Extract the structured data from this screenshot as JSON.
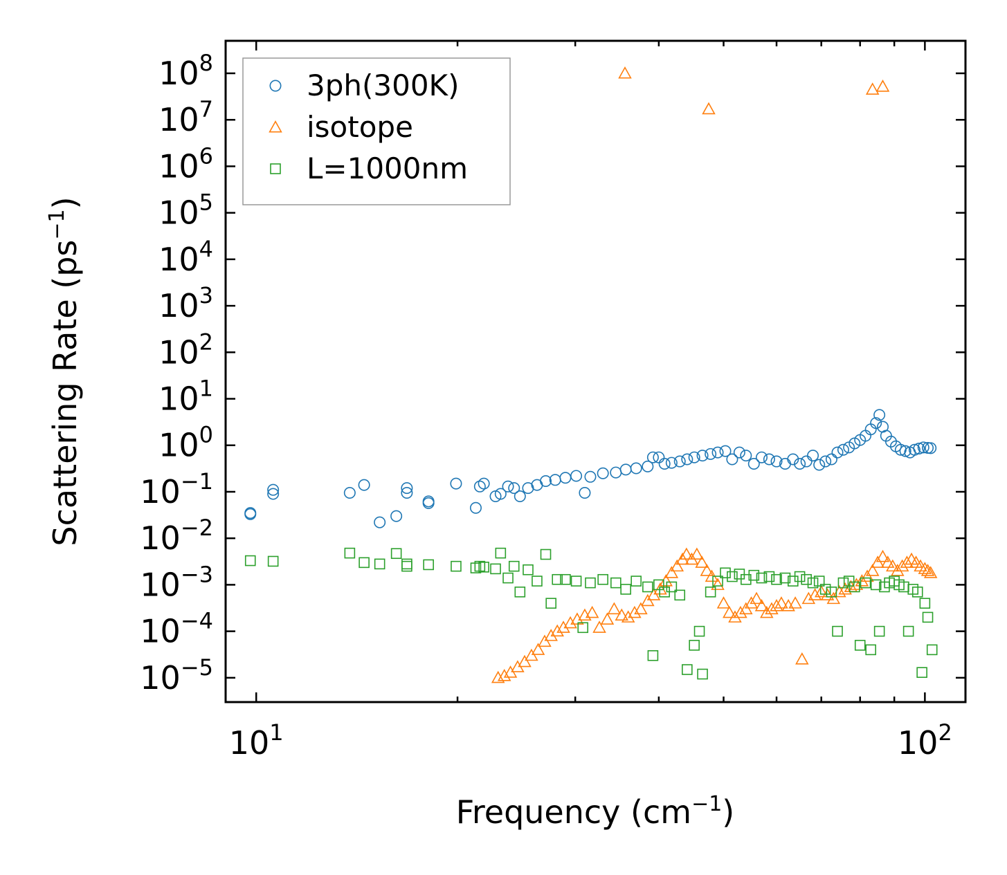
{
  "chart_data": {
    "type": "scatter",
    "title": "",
    "xlabel": "Frequency (cm⁻¹)",
    "xlabel_base": "Frequency (cm",
    "xlabel_sup": "−1",
    "xlabel_end": ")",
    "ylabel": "Scattering Rate (ps⁻¹)",
    "ylabel_base": "Scattering Rate (ps",
    "ylabel_sup": "−1",
    "ylabel_end": ")",
    "xscale": "log",
    "yscale": "log",
    "xlim": [
      9.0,
      115.0
    ],
    "ylim": [
      3e-06,
      500000000.0
    ],
    "x_ticks": [
      {
        "base": "10",
        "exp": "1"
      },
      {
        "base": "10",
        "exp": "2"
      }
    ],
    "y_ticks": [
      {
        "base": "10",
        "exp": "−5"
      },
      {
        "base": "10",
        "exp": "−4"
      },
      {
        "base": "10",
        "exp": "−3"
      },
      {
        "base": "10",
        "exp": "−2"
      },
      {
        "base": "10",
        "exp": "−1"
      },
      {
        "base": "10",
        "exp": "0"
      },
      {
        "base": "10",
        "exp": "1"
      },
      {
        "base": "10",
        "exp": "2"
      },
      {
        "base": "10",
        "exp": "3"
      },
      {
        "base": "10",
        "exp": "4"
      },
      {
        "base": "10",
        "exp": "5"
      },
      {
        "base": "10",
        "exp": "6"
      },
      {
        "base": "10",
        "exp": "7"
      },
      {
        "base": "10",
        "exp": "8"
      }
    ],
    "legend_position": "top-left",
    "series": [
      {
        "name": "3ph(300K)",
        "marker": "circle",
        "color": "#1f77b4",
        "points": [
          [
            9.8,
            0.035
          ],
          [
            9.8,
            0.033
          ],
          [
            10.6,
            0.11
          ],
          [
            10.6,
            0.09
          ],
          [
            13.8,
            0.095
          ],
          [
            14.5,
            0.14
          ],
          [
            15.3,
            0.022
          ],
          [
            16.2,
            0.03
          ],
          [
            16.8,
            0.12
          ],
          [
            16.8,
            0.095
          ],
          [
            18.1,
            0.062
          ],
          [
            18.1,
            0.057
          ],
          [
            19.9,
            0.15
          ],
          [
            21.3,
            0.045
          ],
          [
            21.6,
            0.13
          ],
          [
            21.9,
            0.15
          ],
          [
            22.8,
            0.08
          ],
          [
            23.2,
            0.09
          ],
          [
            23.8,
            0.13
          ],
          [
            24.3,
            0.12
          ],
          [
            24.8,
            0.08
          ],
          [
            25.5,
            0.12
          ],
          [
            26.3,
            0.14
          ],
          [
            27.1,
            0.17
          ],
          [
            28.0,
            0.18
          ],
          [
            29.0,
            0.2
          ],
          [
            30.1,
            0.22
          ],
          [
            31.0,
            0.095
          ],
          [
            31.6,
            0.21
          ],
          [
            33.0,
            0.25
          ],
          [
            34.5,
            0.26
          ],
          [
            35.7,
            0.3
          ],
          [
            37.0,
            0.32
          ],
          [
            38.5,
            0.35
          ],
          [
            39.2,
            0.55
          ],
          [
            40.0,
            0.55
          ],
          [
            40.8,
            0.4
          ],
          [
            41.8,
            0.42
          ],
          [
            43.0,
            0.45
          ],
          [
            44.1,
            0.5
          ],
          [
            45.2,
            0.55
          ],
          [
            46.5,
            0.6
          ],
          [
            47.8,
            0.65
          ],
          [
            49.0,
            0.7
          ],
          [
            50.3,
            0.75
          ],
          [
            51.5,
            0.5
          ],
          [
            52.8,
            0.7
          ],
          [
            54.0,
            0.6
          ],
          [
            55.5,
            0.4
          ],
          [
            57.0,
            0.55
          ],
          [
            58.5,
            0.5
          ],
          [
            60.0,
            0.45
          ],
          [
            61.8,
            0.4
          ],
          [
            63.5,
            0.5
          ],
          [
            65.0,
            0.4
          ],
          [
            66.5,
            0.45
          ],
          [
            68.0,
            0.6
          ],
          [
            69.5,
            0.38
          ],
          [
            71.0,
            0.45
          ],
          [
            72.5,
            0.5
          ],
          [
            74.0,
            0.7
          ],
          [
            75.5,
            0.8
          ],
          [
            77.0,
            0.9
          ],
          [
            78.5,
            1.1
          ],
          [
            80.0,
            1.3
          ],
          [
            81.5,
            1.6
          ],
          [
            83.0,
            2.2
          ],
          [
            84.5,
            3.0
          ],
          [
            85.5,
            4.5
          ],
          [
            86.5,
            2.5
          ],
          [
            87.5,
            1.6
          ],
          [
            89.0,
            1.2
          ],
          [
            90.5,
            0.95
          ],
          [
            92.0,
            0.8
          ],
          [
            93.5,
            0.75
          ],
          [
            95.0,
            0.7
          ],
          [
            96.5,
            0.8
          ],
          [
            98.0,
            0.85
          ],
          [
            99.5,
            0.9
          ],
          [
            101.0,
            0.88
          ],
          [
            102.0,
            0.87
          ]
        ]
      },
      {
        "name": "isotope",
        "marker": "triangle",
        "color": "#ff7f0e",
        "points": [
          [
            35.6,
            100000000.0
          ],
          [
            47.5,
            17000000.0
          ],
          [
            83.5,
            45000000.0
          ],
          [
            86.5,
            52000000.0
          ],
          [
            23.0,
            1e-05
          ],
          [
            23.5,
            1.1e-05
          ],
          [
            24.0,
            1.3e-05
          ],
          [
            24.6,
            1.7e-05
          ],
          [
            25.2,
            2.2e-05
          ],
          [
            25.8,
            3e-05
          ],
          [
            26.4,
            4e-05
          ],
          [
            27.0,
            6e-05
          ],
          [
            27.6,
            8e-05
          ],
          [
            28.2,
            0.0001
          ],
          [
            28.8,
            0.00012
          ],
          [
            29.5,
            0.00015
          ],
          [
            30.2,
            0.00018
          ],
          [
            31.0,
            0.00022
          ],
          [
            31.8,
            0.00025
          ],
          [
            32.6,
            0.00012
          ],
          [
            33.5,
            0.00018
          ],
          [
            34.3,
            0.0003
          ],
          [
            35.2,
            0.00022
          ],
          [
            36.0,
            0.0002
          ],
          [
            36.8,
            0.00025
          ],
          [
            37.6,
            0.0003
          ],
          [
            38.5,
            0.00045
          ],
          [
            39.3,
            0.0006
          ],
          [
            40.2,
            0.0008
          ],
          [
            41.0,
            0.0012
          ],
          [
            41.8,
            0.0018
          ],
          [
            42.6,
            0.0025
          ],
          [
            43.4,
            0.0035
          ],
          [
            44.0,
            0.0045
          ],
          [
            44.8,
            0.0035
          ],
          [
            45.6,
            0.0045
          ],
          [
            46.4,
            0.003
          ],
          [
            47.2,
            0.002
          ],
          [
            48.0,
            0.0015
          ],
          [
            49.0,
            0.001
          ],
          [
            50.0,
            0.0004
          ],
          [
            51.0,
            0.00025
          ],
          [
            52.0,
            0.0002
          ],
          [
            53.0,
            0.00025
          ],
          [
            54.0,
            0.0003
          ],
          [
            55.0,
            0.0004
          ],
          [
            56.0,
            0.0005
          ],
          [
            57.0,
            0.00035
          ],
          [
            58.0,
            0.00025
          ],
          [
            59.0,
            0.0003
          ],
          [
            60.0,
            0.00035
          ],
          [
            61.0,
            0.0004
          ],
          [
            62.5,
            0.00035
          ],
          [
            64.0,
            0.0004
          ],
          [
            65.5,
            2.5e-05
          ],
          [
            67.0,
            0.0005
          ],
          [
            68.5,
            0.0006
          ],
          [
            70.0,
            0.0007
          ],
          [
            71.5,
            0.0006
          ],
          [
            73.0,
            0.0005
          ],
          [
            74.5,
            0.0007
          ],
          [
            76.0,
            0.0008
          ],
          [
            77.5,
            0.0009
          ],
          [
            79.0,
            0.001
          ],
          [
            80.5,
            0.0012
          ],
          [
            82.0,
            0.0015
          ],
          [
            83.5,
            0.002
          ],
          [
            85.0,
            0.003
          ],
          [
            86.5,
            0.004
          ],
          [
            88.0,
            0.003
          ],
          [
            89.5,
            0.0025
          ],
          [
            91.0,
            0.002
          ],
          [
            92.5,
            0.0025
          ],
          [
            94.0,
            0.003
          ],
          [
            95.5,
            0.0035
          ],
          [
            97.0,
            0.003
          ],
          [
            98.5,
            0.0025
          ],
          [
            100.0,
            0.0022
          ],
          [
            101.0,
            0.002
          ],
          [
            102.0,
            0.0018
          ]
        ]
      },
      {
        "name": "L=1000nm",
        "marker": "square",
        "color": "#2ca02c",
        "points": [
          [
            9.8,
            0.0033
          ],
          [
            10.6,
            0.0032
          ],
          [
            13.8,
            0.0048
          ],
          [
            14.5,
            0.003
          ],
          [
            15.3,
            0.0028
          ],
          [
            16.2,
            0.0047
          ],
          [
            16.8,
            0.0028
          ],
          [
            16.8,
            0.0025
          ],
          [
            18.1,
            0.0027
          ],
          [
            19.9,
            0.0025
          ],
          [
            21.3,
            0.0023
          ],
          [
            21.6,
            0.0025
          ],
          [
            21.9,
            0.0024
          ],
          [
            22.8,
            0.0022
          ],
          [
            23.2,
            0.0048
          ],
          [
            23.8,
            0.0014
          ],
          [
            24.3,
            0.0025
          ],
          [
            24.8,
            0.0007
          ],
          [
            25.5,
            0.0021
          ],
          [
            26.3,
            0.0012
          ],
          [
            27.1,
            0.0045
          ],
          [
            27.6,
            0.0004
          ],
          [
            28.2,
            0.0013
          ],
          [
            29.0,
            0.0013
          ],
          [
            30.1,
            0.0012
          ],
          [
            30.8,
            0.00012
          ],
          [
            31.6,
            0.0011
          ],
          [
            33.0,
            0.0013
          ],
          [
            34.5,
            0.0011
          ],
          [
            35.7,
            0.0008
          ],
          [
            37.0,
            0.0012
          ],
          [
            38.5,
            0.0009
          ],
          [
            39.2,
            3e-05
          ],
          [
            40.0,
            0.001
          ],
          [
            40.8,
            0.0007
          ],
          [
            41.8,
            0.0009
          ],
          [
            43.0,
            0.0006
          ],
          [
            44.1,
            1.5e-05
          ],
          [
            45.2,
            5e-05
          ],
          [
            46.0,
            0.0001
          ],
          [
            46.5,
            1.2e-05
          ],
          [
            47.8,
            0.0007
          ],
          [
            49.0,
            0.0012
          ],
          [
            50.3,
            0.0018
          ],
          [
            51.5,
            0.0015
          ],
          [
            52.8,
            0.0017
          ],
          [
            54.0,
            0.0013
          ],
          [
            55.5,
            0.0016
          ],
          [
            57.0,
            0.0014
          ],
          [
            58.5,
            0.0015
          ],
          [
            60.0,
            0.0013
          ],
          [
            61.8,
            0.0014
          ],
          [
            63.5,
            0.0012
          ],
          [
            65.0,
            0.0015
          ],
          [
            66.5,
            0.0013
          ],
          [
            68.0,
            0.0011
          ],
          [
            69.5,
            0.0012
          ],
          [
            71.0,
            0.0008
          ],
          [
            72.5,
            0.0007
          ],
          [
            74.0,
            0.0001
          ],
          [
            75.5,
            0.0011
          ],
          [
            77.0,
            0.0012
          ],
          [
            78.5,
            0.0009
          ],
          [
            80.0,
            5e-05
          ],
          [
            81.5,
            0.0011
          ],
          [
            83.0,
            4e-05
          ],
          [
            84.5,
            0.001
          ],
          [
            85.5,
            0.0001
          ],
          [
            87.0,
            0.0009
          ],
          [
            88.5,
            0.0011
          ],
          [
            90.0,
            0.0012
          ],
          [
            91.5,
            0.001
          ],
          [
            93.0,
            0.0009
          ],
          [
            94.5,
            0.0001
          ],
          [
            96.0,
            0.0008
          ],
          [
            97.5,
            0.0007
          ],
          [
            99.0,
            1.3e-05
          ],
          [
            100.0,
            0.0004
          ],
          [
            101.0,
            0.0002
          ],
          [
            102.5,
            4e-05
          ]
        ]
      }
    ]
  }
}
